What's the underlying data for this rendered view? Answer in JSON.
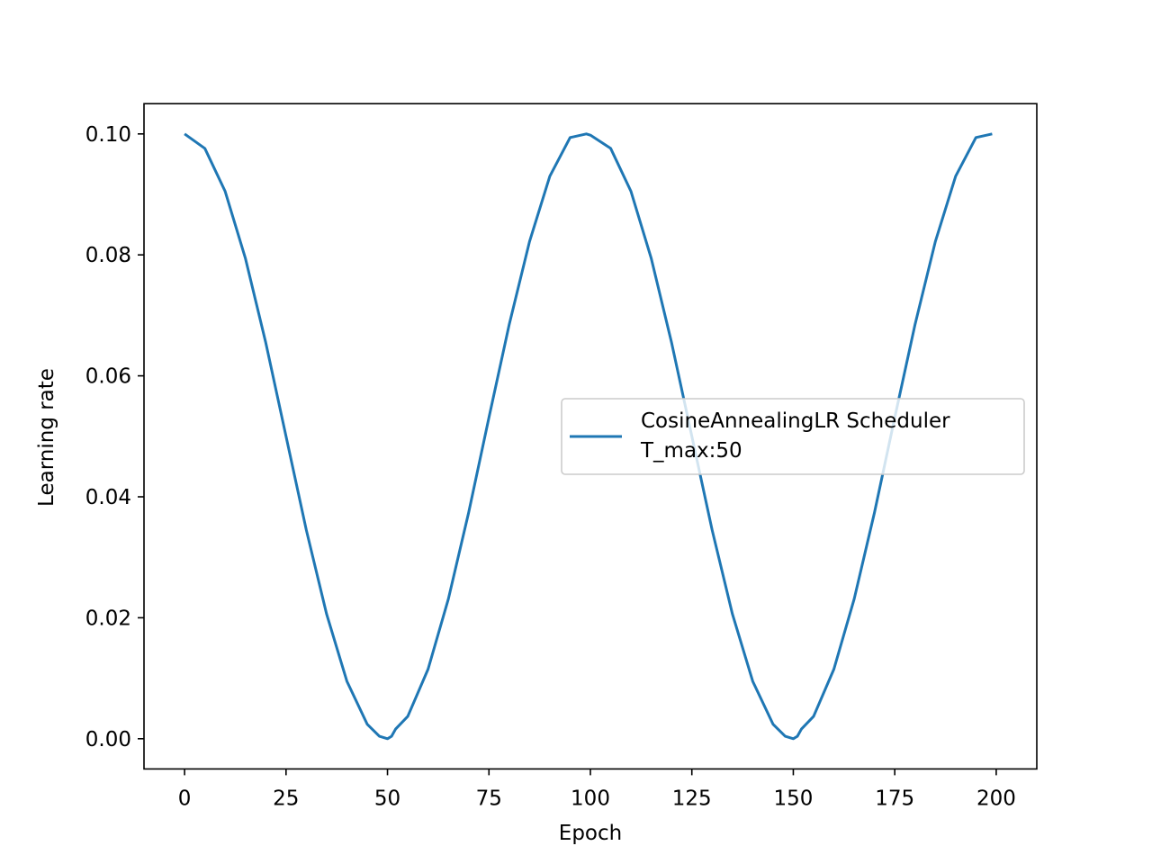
{
  "chart_data": {
    "type": "line",
    "xlabel": "Epoch",
    "ylabel": "Learning rate",
    "xlim": [
      -10,
      210
    ],
    "ylim": [
      -0.005,
      0.105
    ],
    "xticks": [
      0,
      25,
      50,
      75,
      100,
      125,
      150,
      175,
      200
    ],
    "xtick_labels": [
      "0",
      "25",
      "50",
      "75",
      "100",
      "125",
      "150",
      "175",
      "200"
    ],
    "yticks": [
      0.0,
      0.02,
      0.04,
      0.06,
      0.08,
      0.1
    ],
    "ytick_labels": [
      "0.00",
      "0.02",
      "0.04",
      "0.06",
      "0.08",
      "0.10"
    ],
    "grid": false,
    "legend_position": "center-right",
    "series": [
      {
        "name_lines": [
          "CosineAnnealingLR Scheduler",
          "T_max:50"
        ],
        "color": "#1f77b4",
        "x": [
          0,
          5,
          10,
          15,
          20,
          25,
          30,
          35,
          40,
          45,
          48,
          50,
          51,
          52,
          55,
          60,
          65,
          70,
          75,
          80,
          85,
          90,
          95,
          99,
          100,
          105,
          110,
          115,
          120,
          125,
          130,
          135,
          140,
          145,
          148,
          150,
          151,
          152,
          155,
          160,
          165,
          170,
          175,
          180,
          185,
          190,
          195,
          199
        ],
        "y": [
          0.1,
          0.0976,
          0.0905,
          0.0794,
          0.0655,
          0.05,
          0.0345,
          0.0206,
          0.0095,
          0.0024,
          0.0004,
          0.0,
          0.0004,
          0.0016,
          0.0037,
          0.0115,
          0.0231,
          0.0374,
          0.0531,
          0.0685,
          0.0822,
          0.093,
          0.0994,
          0.1,
          0.0998,
          0.0976,
          0.0905,
          0.0794,
          0.0655,
          0.05,
          0.0345,
          0.0206,
          0.0095,
          0.0024,
          0.0004,
          0.0,
          0.0004,
          0.0016,
          0.0037,
          0.0115,
          0.0231,
          0.0374,
          0.0531,
          0.0685,
          0.0822,
          0.093,
          0.0994,
          0.1
        ]
      }
    ]
  }
}
